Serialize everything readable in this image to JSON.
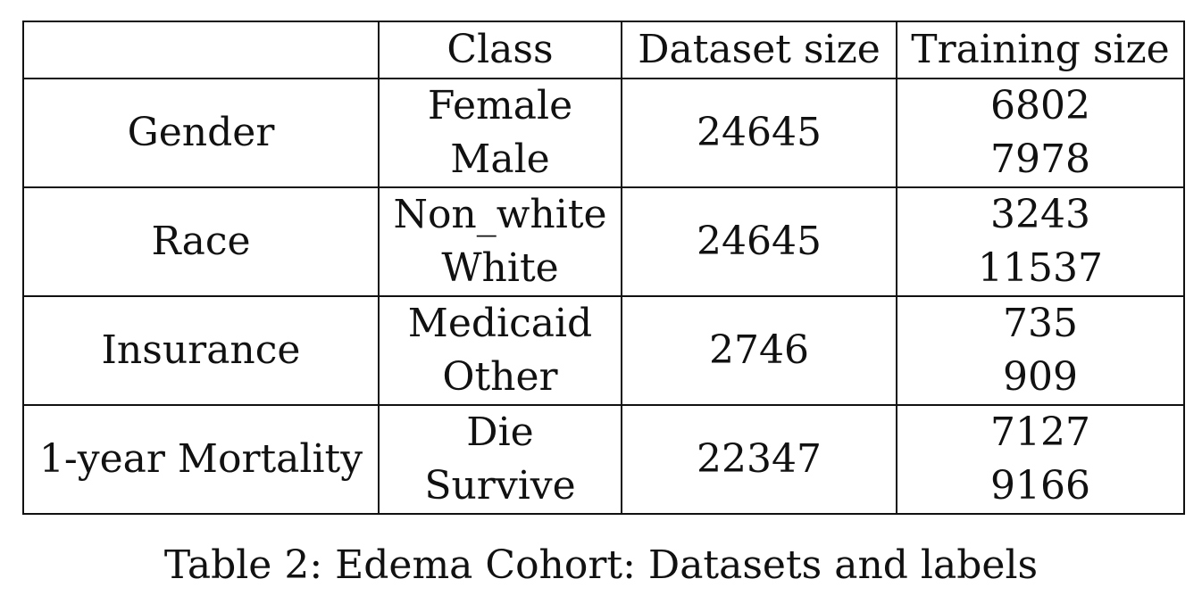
{
  "table": {
    "headers": [
      "",
      "Class",
      "Dataset size",
      "Training size"
    ],
    "rows": [
      {
        "attribute": "Gender",
        "classes": [
          "Female",
          "Male"
        ],
        "dataset_size": "24645",
        "training_sizes": [
          "6802",
          "7978"
        ]
      },
      {
        "attribute": "Race",
        "classes": [
          "Non_white",
          "White"
        ],
        "dataset_size": "24645",
        "training_sizes": [
          "3243",
          "11537"
        ]
      },
      {
        "attribute": "Insurance",
        "classes": [
          "Medicaid",
          "Other"
        ],
        "dataset_size": "2746",
        "training_sizes": [
          "735",
          "909"
        ]
      },
      {
        "attribute": "1-year Mortality",
        "classes": [
          "Die",
          "Survive"
        ],
        "dataset_size": "22347",
        "training_sizes": [
          "7127",
          "9166"
        ]
      }
    ]
  },
  "caption": "Table 2: Edema Cohort: Datasets and labels"
}
